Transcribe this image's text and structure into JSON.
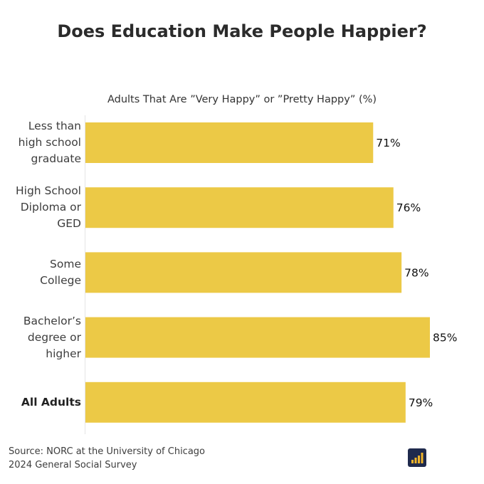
{
  "chart_data": {
    "type": "bar",
    "orientation": "horizontal",
    "title": "Does Education Make People Happier?",
    "subtitle": "Adults That Are ”Very Happy” or ”Pretty Happy” (%)",
    "categories": [
      [
        "Less than",
        "high school",
        "graduate"
      ],
      [
        "High School",
        "Diploma or",
        "GED"
      ],
      [
        "Some",
        "College"
      ],
      [
        "Bachelor’s",
        "degree or",
        "higher"
      ],
      [
        "All Adults"
      ]
    ],
    "values": [
      71,
      76,
      78,
      85,
      79
    ],
    "value_labels": [
      "71%",
      "76%",
      "78%",
      "85%",
      "79%"
    ],
    "bold_categories": [
      4
    ],
    "xlim": [
      0,
      85
    ],
    "bar_color": "#ecc946",
    "grid": false
  },
  "source": {
    "line1": "Source: NORC at the University of Chicago",
    "line2": "2024 General Social Survey"
  },
  "logo": {
    "icon": "bar-chart-logo-icon",
    "bg_color": "#1f2a4d",
    "accent_color": "#f0b429"
  }
}
